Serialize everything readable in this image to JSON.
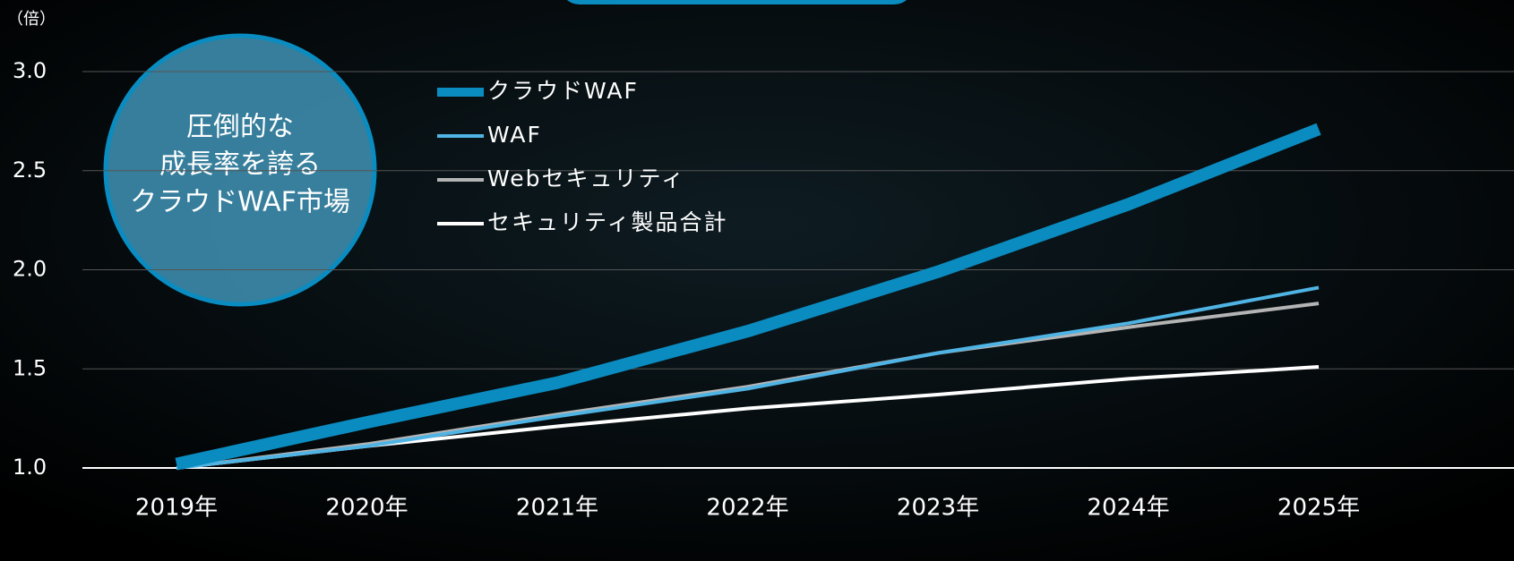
{
  "chart_data": {
    "type": "line",
    "y_label": "（倍）",
    "annotation": [
      "圧倒的な",
      "成長率を誇る",
      "クラウドWAF市場"
    ],
    "categories": [
      "2019年",
      "2020年",
      "2021年",
      "2022年",
      "2023年",
      "2024年",
      "2025年"
    ],
    "series": [
      {
        "name": "クラウドWAF",
        "color": "#0a8cc0",
        "values": [
          1.02,
          1.23,
          1.43,
          1.69,
          1.99,
          2.33,
          2.71
        ]
      },
      {
        "name": "WAF",
        "color": "#4fb3e3",
        "values": [
          1.0,
          1.11,
          1.26,
          1.4,
          1.58,
          1.73,
          1.91
        ]
      },
      {
        "name": "Webセキュリティ",
        "color": "#b4b4b4",
        "values": [
          1.0,
          1.12,
          1.27,
          1.41,
          1.58,
          1.71,
          1.83
        ]
      },
      {
        "name": "セキュリティ製品合計",
        "color": "#ffffff",
        "values": [
          1.0,
          1.11,
          1.21,
          1.3,
          1.37,
          1.45,
          1.51
        ]
      }
    ],
    "ylim": [
      1,
      3
    ],
    "yticks": [
      {
        "value": 1,
        "label": "1.0"
      },
      1.5,
      {
        "value": 2,
        "label": "2.0"
      },
      2.5,
      {
        "value": 3,
        "label": "3.0"
      }
    ],
    "grid": true
  }
}
